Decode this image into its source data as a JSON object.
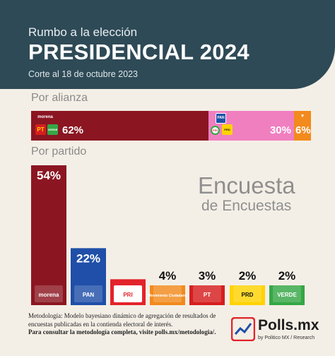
{
  "header": {
    "subtitle": "Rumbo a la elección",
    "title": "PRESIDENCIAL 2024",
    "date": "Corte al 18 de octubre 2023"
  },
  "sections": {
    "alianza": "Por alianza",
    "partido": "Por partido"
  },
  "watermark": {
    "line1": "Encuesta",
    "line2": "de Encuestas"
  },
  "alliance_logos": {
    "morena": "morena",
    "pt": "PT",
    "verde": "VERDE",
    "pan": "PAN",
    "pri": "PRI",
    "prd": "PRD"
  },
  "chart_data": [
    {
      "type": "bar",
      "orientation": "horizontal-stacked",
      "title": "Por alianza",
      "categories": [
        "Morena-PT-Verde",
        "PAN-PRI-PRD",
        "Movimiento Ciudadano"
      ],
      "values": [
        62,
        30,
        6
      ],
      "labels": [
        "62%",
        "30%",
        "6%"
      ],
      "colors": [
        "#8b1622",
        "#f07fc0",
        "#f28a1d"
      ]
    },
    {
      "type": "bar",
      "title": "Por partido",
      "categories": [
        "morena",
        "PAN",
        "PRI",
        "Movimiento Ciudadano",
        "PT",
        "PRD",
        "VERDE"
      ],
      "values": [
        54,
        22,
        10,
        4,
        3,
        2,
        2
      ],
      "labels": [
        "54%",
        "22%",
        "10%",
        "4%",
        "3%",
        "2%",
        "2%"
      ],
      "colors": [
        "#8b1622",
        "#1f4fa8",
        "#e3232b",
        "#f28a1d",
        "#d61e1e",
        "#ffd200",
        "#35a745"
      ],
      "ylim": [
        0,
        54
      ]
    }
  ],
  "footer": {
    "metodologia": "Metodología: Modelo bayesiano dinámico de agregación de resultados de encuestas publicadas en la contienda electoral de interés.",
    "consultar": "Para consultar la metodología completa, visite polls.mx/metodologia/."
  },
  "brand": {
    "name": "Polls.mx",
    "sub": "by Politico MX / Research"
  }
}
